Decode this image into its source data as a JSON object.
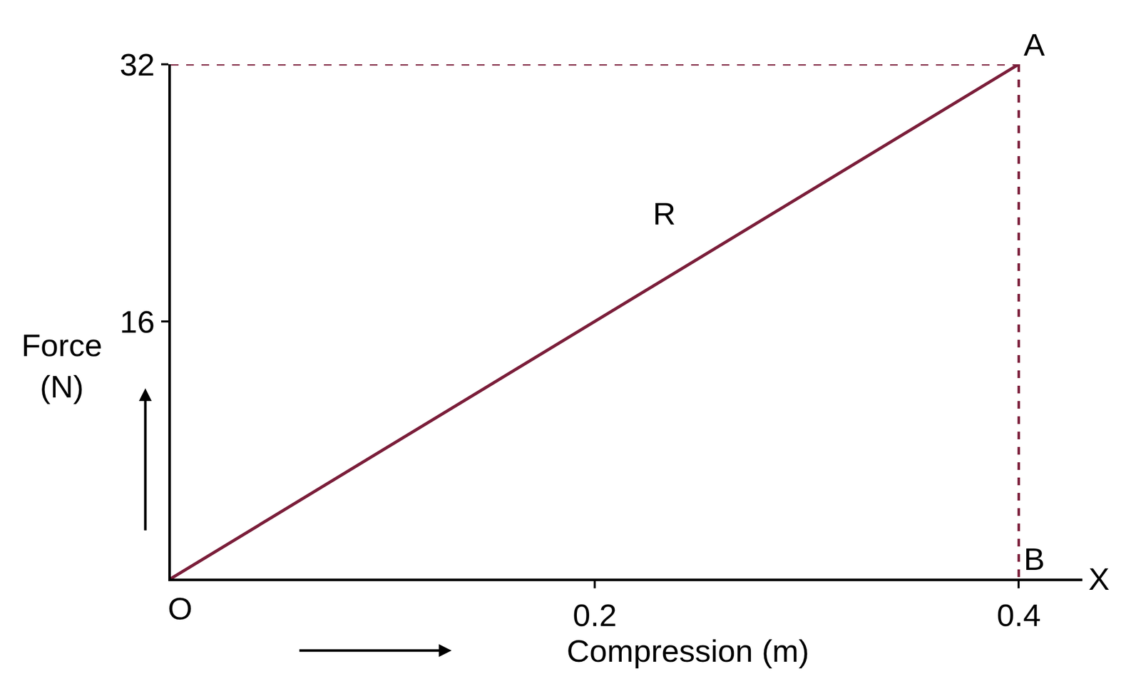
{
  "chart_data": {
    "type": "line",
    "x": [
      0,
      0.4
    ],
    "values": [
      0,
      32
    ],
    "color": "#7b1e3a",
    "line_style": "solid",
    "x_label": "Compression (m)",
    "y_label": "Force (N)",
    "xlim": [
      0,
      0.43
    ],
    "ylim": [
      0,
      32
    ],
    "xticks": [
      0.2,
      0.4
    ],
    "yticks": [
      16,
      32
    ],
    "grid": false,
    "annotations": [
      {
        "text": "A",
        "x": 0.4,
        "y": 32
      },
      {
        "text": "B",
        "x": 0.4,
        "y": 0
      },
      {
        "text": "O",
        "x": 0,
        "y": 0
      },
      {
        "text": "R",
        "x": 0.225,
        "y": 21.5
      },
      {
        "text": "X",
        "x": 0.43,
        "y": 0
      }
    ]
  }
}
